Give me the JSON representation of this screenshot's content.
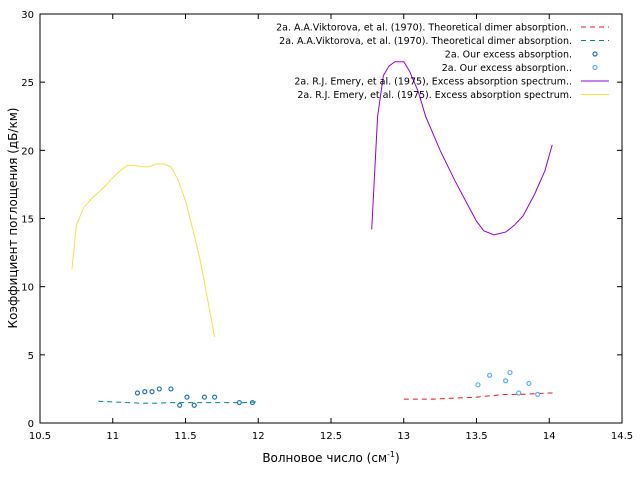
{
  "chart_data": {
    "type": "line",
    "xlabel": "Волновое число (см",
    "xlabel_sup": "-1",
    "xlabel_tail": ")",
    "ylabel": "Коэффициент поглощения (дБ/км)",
    "xlim": [
      10.5,
      14.5
    ],
    "ylim": [
      0,
      30
    ],
    "xticks": [
      10.5,
      11,
      11.5,
      12,
      12.5,
      13,
      13.5,
      14,
      14.5
    ],
    "xtick_labels": [
      "10.5",
      "11",
      "11.5",
      "12",
      "12.5",
      "13",
      "13.5",
      "14",
      "14.5"
    ],
    "yticks": [
      0,
      5,
      10,
      15,
      20,
      25,
      30
    ],
    "ytick_labels": [
      "0",
      "5",
      "10",
      "15",
      "20",
      "25",
      "30"
    ],
    "grid": false,
    "legend_position": "top-right",
    "series": [
      {
        "name": "2a. A.A.Viktorova, et al. (1970).  Theoretical dimer absorption..",
        "style": "dashed",
        "color": "#e41a1c",
        "x": [
          13.0,
          13.2,
          13.4,
          13.5,
          13.6,
          13.7,
          13.8,
          13.9,
          14.0,
          14.05
        ],
        "y": [
          1.75,
          1.75,
          1.85,
          1.9,
          2.0,
          2.1,
          2.1,
          2.15,
          2.2,
          2.2
        ]
      },
      {
        "name": "2a. A.A.Viktorova, et al. (1970). Theoretical dimer absorption.",
        "style": "dashed",
        "color": "#00897b",
        "x": [
          10.9,
          11.0,
          11.1,
          11.2,
          11.3,
          11.4,
          11.5,
          11.6,
          11.7,
          11.8,
          11.9,
          12.0
        ],
        "y": [
          1.6,
          1.55,
          1.5,
          1.45,
          1.45,
          1.5,
          1.5,
          1.5,
          1.5,
          1.5,
          1.5,
          1.55
        ]
      },
      {
        "name": "2a. Our excess absorption.",
        "style": "points",
        "color": "#1f77b4",
        "x": [
          11.17,
          11.22,
          11.27,
          11.32,
          11.4,
          11.46,
          11.51,
          11.56,
          11.63,
          11.7,
          11.87,
          11.96
        ],
        "y": [
          2.2,
          2.3,
          2.3,
          2.5,
          2.5,
          1.3,
          1.9,
          1.3,
          1.9,
          1.9,
          1.5,
          1.5
        ]
      },
      {
        "name": "2a. Our excess absorption..",
        "style": "points",
        "color": "#56b4e9",
        "x": [
          13.51,
          13.59,
          13.7,
          13.73,
          13.79,
          13.86,
          13.92
        ],
        "y": [
          2.8,
          3.5,
          3.1,
          3.7,
          2.2,
          2.9,
          2.1
        ]
      },
      {
        "name": "2a. R.J. Emery, et al. (1975), Excess absorption spectrum..",
        "style": "solid",
        "color": "#9400d3",
        "x": [
          12.78,
          12.82,
          12.86,
          12.9,
          12.94,
          13.0,
          13.04,
          13.1,
          13.15,
          13.25,
          13.35,
          13.45,
          13.5,
          13.55,
          13.62,
          13.7,
          13.76,
          13.82,
          13.9,
          13.97,
          14.02
        ],
        "y": [
          14.2,
          22.5,
          25.5,
          26.2,
          26.5,
          26.5,
          25.8,
          24.3,
          22.5,
          20.0,
          17.8,
          15.8,
          14.8,
          14.1,
          13.8,
          14.0,
          14.5,
          15.2,
          16.8,
          18.5,
          20.4
        ]
      },
      {
        "name": "2a. R.J. Emery, et al. (1975). Excess absorption spectrum.",
        "style": "solid",
        "color": "#f0e442",
        "x": [
          10.72,
          10.75,
          10.8,
          10.85,
          10.9,
          10.95,
          11.0,
          11.05,
          11.1,
          11.15,
          11.2,
          11.25,
          11.3,
          11.35,
          11.4,
          11.45,
          11.5,
          11.55,
          11.6,
          11.65,
          11.7
        ],
        "y": [
          11.3,
          14.5,
          15.8,
          16.4,
          16.9,
          17.4,
          18.0,
          18.5,
          18.9,
          18.9,
          18.8,
          18.8,
          19.0,
          19.0,
          18.8,
          17.8,
          16.3,
          14.2,
          12.0,
          9.2,
          6.3
        ]
      }
    ]
  }
}
